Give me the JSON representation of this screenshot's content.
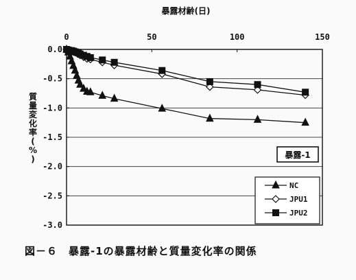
{
  "caption": "図－６　暴露-1の暴露材齢と質量変化率の関係",
  "chart_data": {
    "type": "line",
    "xlabel": "暴露材齢(日)",
    "ylabel": "質量変化率(%)",
    "xlim": [
      0,
      150
    ],
    "ylim": [
      -3.0,
      0.0
    ],
    "x_ticks": [
      0,
      50,
      100,
      150
    ],
    "y_ticks": [
      0.0,
      -0.5,
      -1.0,
      -1.5,
      -2.0,
      -2.5,
      -3.0
    ],
    "x_tick_labels": [
      "0",
      "50",
      "100",
      "150"
    ],
    "y_tick_labels": [
      "0.0",
      "-0.5",
      "-1.0",
      "-1.5",
      "-2.0",
      "-2.5",
      "-3.0"
    ],
    "x_axis_position": "top",
    "grid": "horizontal",
    "annotation": "暴露-1",
    "legend_position": "bottom-right",
    "series": [
      {
        "name": "NC",
        "marker": "filled-triangle",
        "points": [
          [
            0,
            0.0
          ],
          [
            1,
            -0.05
          ],
          [
            2,
            -0.12
          ],
          [
            3,
            -0.2
          ],
          [
            4,
            -0.28
          ],
          [
            5,
            -0.36
          ],
          [
            6,
            -0.45
          ],
          [
            7,
            -0.53
          ],
          [
            8,
            -0.6
          ],
          [
            10,
            -0.67
          ],
          [
            12,
            -0.72
          ],
          [
            14,
            -0.73
          ],
          [
            21,
            -0.79
          ],
          [
            28,
            -0.84
          ],
          [
            56,
            -1.01
          ],
          [
            84,
            -1.18
          ],
          [
            112,
            -1.2
          ],
          [
            140,
            -1.25
          ]
        ]
      },
      {
        "name": "JPU1",
        "marker": "open-diamond",
        "points": [
          [
            0,
            0.0
          ],
          [
            1,
            -0.01
          ],
          [
            2,
            -0.02
          ],
          [
            3,
            -0.03
          ],
          [
            4,
            -0.04
          ],
          [
            5,
            -0.05
          ],
          [
            6,
            -0.06
          ],
          [
            7,
            -0.08
          ],
          [
            8,
            -0.1
          ],
          [
            10,
            -0.13
          ],
          [
            12,
            -0.16
          ],
          [
            14,
            -0.17
          ],
          [
            21,
            -0.22
          ],
          [
            28,
            -0.27
          ],
          [
            56,
            -0.42
          ],
          [
            84,
            -0.64
          ],
          [
            112,
            -0.69
          ],
          [
            140,
            -0.78
          ]
        ]
      },
      {
        "name": "JPU2",
        "marker": "filled-square",
        "points": [
          [
            0,
            0.0
          ],
          [
            1,
            -0.01
          ],
          [
            2,
            -0.02
          ],
          [
            3,
            -0.02
          ],
          [
            4,
            -0.03
          ],
          [
            5,
            -0.04
          ],
          [
            6,
            -0.05
          ],
          [
            7,
            -0.06
          ],
          [
            8,
            -0.08
          ],
          [
            10,
            -0.1
          ],
          [
            12,
            -0.12
          ],
          [
            14,
            -0.14
          ],
          [
            21,
            -0.18
          ],
          [
            28,
            -0.22
          ],
          [
            56,
            -0.36
          ],
          [
            84,
            -0.55
          ],
          [
            112,
            -0.6
          ],
          [
            140,
            -0.73
          ]
        ]
      }
    ]
  }
}
